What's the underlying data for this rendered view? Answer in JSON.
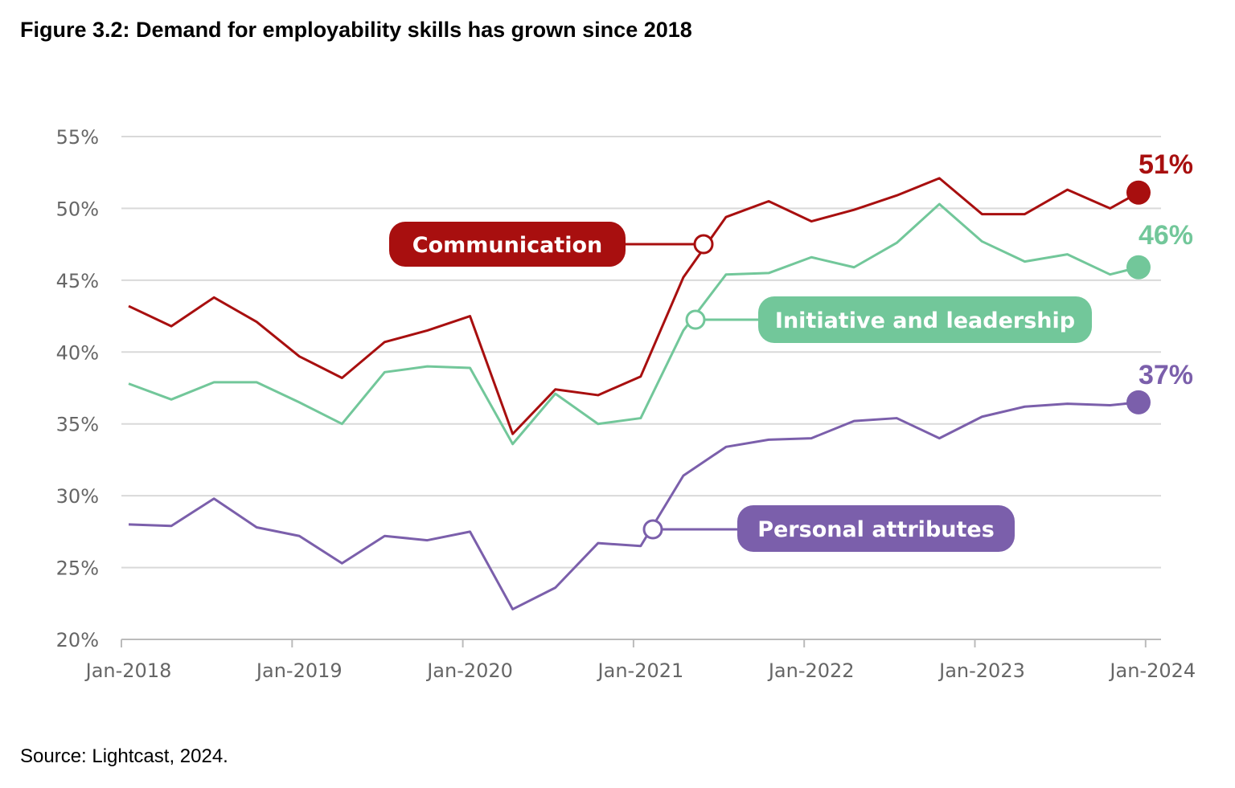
{
  "chart_data": {
    "type": "line",
    "title": "Figure 3.2: Demand for employability skills has grown since 2018",
    "source": "Source:  Lightcast, 2024.",
    "xlabel": "",
    "ylabel": "",
    "ylim": [
      20,
      55
    ],
    "y_ticks": [
      "20%",
      "25%",
      "30%",
      "35%",
      "40%",
      "45%",
      "50%",
      "55%"
    ],
    "x_ticks": [
      "Jan-2018",
      "Jan-2019",
      "Jan-2020",
      "Jan-2021",
      "Jan-2022",
      "Jan-2023",
      "Jan-2024"
    ],
    "grid": "horizontal",
    "x": [
      "2018-01",
      "2018-04",
      "2018-07",
      "2018-10",
      "2019-01",
      "2019-04",
      "2019-07",
      "2019-10",
      "2020-01",
      "2020-04",
      "2020-07",
      "2020-10",
      "2021-01",
      "2021-04",
      "2021-07",
      "2021-10",
      "2022-01",
      "2022-04",
      "2022-07",
      "2022-10",
      "2023-01",
      "2023-04",
      "2023-07",
      "2023-10",
      "2023-12"
    ],
    "series": [
      {
        "name": "Communication",
        "color": "#a80f0f",
        "end_label": "51%",
        "values": [
          43.2,
          41.8,
          43.8,
          42.1,
          39.7,
          38.2,
          40.7,
          41.5,
          42.5,
          34.3,
          37.4,
          37.0,
          38.3,
          45.2,
          49.4,
          50.5,
          49.1,
          49.9,
          50.9,
          52.1,
          49.6,
          49.6,
          51.3,
          50.0,
          51.1
        ]
      },
      {
        "name": "Initiative and leadership",
        "color": "#72c79a",
        "end_label": "46%",
        "values": [
          37.8,
          36.7,
          37.9,
          37.9,
          36.5,
          35.0,
          38.6,
          39.0,
          38.9,
          33.6,
          37.1,
          35.0,
          35.4,
          41.5,
          45.4,
          45.5,
          46.6,
          45.9,
          47.6,
          50.3,
          47.7,
          46.3,
          46.8,
          45.4,
          45.9
        ]
      },
      {
        "name": "Personal attributes",
        "color": "#7b5fab",
        "end_label": "37%",
        "values": [
          28.0,
          27.9,
          29.8,
          27.8,
          27.2,
          25.3,
          27.2,
          26.9,
          27.5,
          22.1,
          23.6,
          26.7,
          26.5,
          31.4,
          33.4,
          33.9,
          34.0,
          35.2,
          35.4,
          34.0,
          35.5,
          36.2,
          36.4,
          36.3,
          36.5
        ]
      }
    ]
  }
}
